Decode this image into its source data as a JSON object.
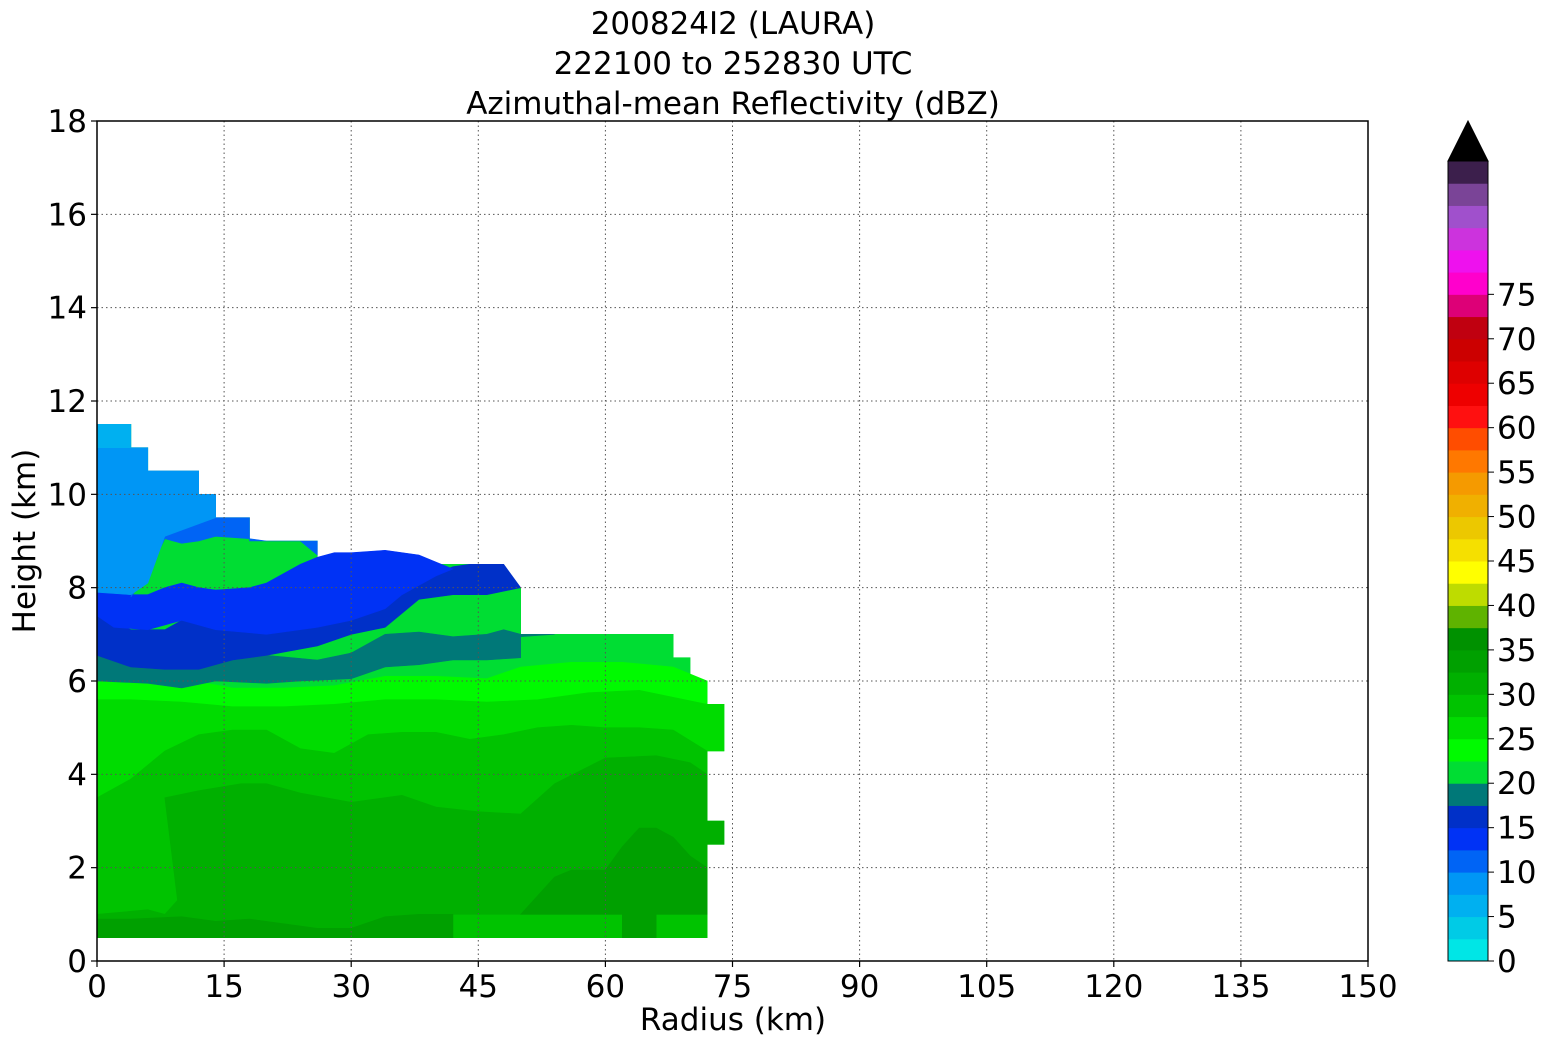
{
  "chart_data": {
    "type": "contour",
    "title": [
      "200824I2 (LAURA)",
      "222100 to 252830 UTC",
      "Azimuthal-mean Reflectivity (dBZ)"
    ],
    "xlabel": "Radius (km)",
    "ylabel": "Height (km)",
    "xlim": [
      0,
      150
    ],
    "ylim": [
      0,
      18
    ],
    "xticks": [
      0,
      15,
      30,
      45,
      60,
      75,
      90,
      105,
      120,
      135,
      150
    ],
    "yticks": [
      0,
      2,
      4,
      6,
      8,
      10,
      12,
      14,
      16,
      18
    ],
    "grid": true,
    "colorbar": {
      "ticks": [
        0,
        5,
        10,
        15,
        20,
        25,
        30,
        35,
        40,
        45,
        50,
        55,
        60,
        65,
        70,
        75
      ],
      "levels": [
        0,
        2.5,
        5,
        7.5,
        10,
        12.5,
        15,
        17.5,
        20,
        22.5,
        25,
        27.5,
        30,
        32.5,
        35,
        37.5,
        40,
        42.5,
        45,
        47.5,
        50,
        52.5,
        55,
        57.5,
        60,
        62.5,
        65,
        67.5,
        70,
        72.5,
        75,
        77.5,
        80
      ],
      "colors": [
        "#00e6e6",
        "#00cbe6",
        "#00b0f0",
        "#0096f5",
        "#0064f5",
        "#0032f5",
        "#0030c8",
        "#007878",
        "#00dd33",
        "#00fa00",
        "#00dc00",
        "#00c300",
        "#00b000",
        "#00a000",
        "#009100",
        "#5fb300",
        "#bedc00",
        "#ffff00",
        "#f5e000",
        "#ecc800",
        "#f0b000",
        "#f59a00",
        "#ff7800",
        "#ff4d00",
        "#ff1010",
        "#ee0000",
        "#de0000",
        "#cc0000",
        "#c00010",
        "#dd0077",
        "#ff00cc",
        "#ee11ee",
        "#cc33dd",
        "#a050cc",
        "#7a4497",
        "#3c1f4c"
      ],
      "extend_max_color": "#000000"
    },
    "regions": [
      {
        "dbz_range": "17.5-20",
        "color": "#00dd33",
        "x": [
          0,
          0,
          4,
          4,
          6,
          6,
          12,
          12,
          14,
          14,
          18,
          18,
          26,
          26,
          42,
          42,
          46,
          46,
          50,
          50,
          54,
          54,
          68,
          68,
          70,
          70,
          72,
          72,
          74,
          74,
          72,
          72,
          74,
          74,
          72,
          72,
          66,
          66,
          62,
          62,
          42,
          42,
          0
        ],
        "y": [
          0.5,
          11.5,
          11.5,
          11,
          11,
          10.5,
          10.5,
          10,
          10,
          9.5,
          9.5,
          9,
          9,
          8.5,
          8.5,
          8.5,
          8.5,
          8,
          8,
          7,
          7,
          7,
          7,
          6.5,
          6.5,
          6,
          6,
          5.5,
          5.5,
          4.5,
          4.5,
          3,
          3,
          2.5,
          2.5,
          1,
          1,
          0.5,
          0.5,
          1,
          1,
          0.5,
          0.5
        ]
      },
      {
        "dbz_range": "20-22.5",
        "color": "#00fa00",
        "x": [
          0,
          0,
          10,
          16,
          22,
          28,
          34,
          40,
          46,
          50,
          56,
          62,
          68,
          72,
          72,
          0
        ],
        "y": [
          0.5,
          6,
          6.05,
          5.85,
          5.85,
          5.9,
          6.1,
          6.1,
          6.05,
          6.3,
          6.4,
          6.4,
          6.3,
          6.0,
          0.5,
          0.5
        ]
      },
      {
        "dbz_range": "22.5-25",
        "color": "#00dc00",
        "x": [
          0,
          0,
          4,
          10,
          16,
          22,
          28,
          34,
          40,
          46,
          52,
          58,
          64,
          72,
          74,
          74,
          72,
          72,
          0
        ],
        "y": [
          0.5,
          5.6,
          5.6,
          5.55,
          5.45,
          5.45,
          5.5,
          5.6,
          5.6,
          5.55,
          5.6,
          5.75,
          5.8,
          5.5,
          5.5,
          4.5,
          4.5,
          0.5,
          0.5
        ]
      },
      {
        "dbz_range": "25-27.5",
        "color": "#00c300",
        "x": [
          0,
          0,
          4,
          8,
          12,
          16,
          20,
          24,
          28,
          32,
          36,
          40,
          44,
          48,
          52,
          56,
          60,
          64,
          68,
          72,
          72,
          0
        ],
        "y": [
          0.5,
          3.5,
          3.9,
          4.5,
          4.85,
          4.95,
          4.95,
          4.55,
          4.45,
          4.85,
          4.9,
          4.9,
          4.75,
          4.85,
          5.0,
          5.05,
          5.0,
          5.0,
          4.95,
          4.5,
          0.5,
          0.5
        ]
      },
      {
        "dbz_range": "27.5-30",
        "color": "#00b000",
        "x": [
          8,
          9.5,
          8,
          12,
          17,
          20,
          24,
          30,
          36,
          40,
          45,
          50,
          54,
          60,
          66,
          70,
          72,
          72,
          74,
          74,
          72,
          72,
          54,
          54,
          50,
          46,
          42,
          42,
          0,
          0,
          6,
          8
        ],
        "y": [
          1.0,
          1.3,
          3.5,
          3.65,
          3.8,
          3.8,
          3.6,
          3.4,
          3.55,
          3.3,
          3.2,
          3.15,
          3.8,
          4.35,
          4.4,
          4.25,
          4.0,
          3.0,
          3.0,
          2.5,
          2.5,
          1.0,
          1.0,
          1.0,
          1.0,
          1.0,
          1.0,
          0.5,
          0.5,
          1.0,
          1.1,
          1.0
        ]
      },
      {
        "dbz_range": "30-32.5",
        "color": "#00a000",
        "x": [
          0,
          0,
          4,
          10,
          14,
          18,
          22,
          26,
          30,
          34,
          38,
          42,
          42,
          0
        ],
        "y": [
          0.5,
          0.9,
          0.9,
          0.95,
          0.85,
          0.9,
          0.8,
          0.7,
          0.7,
          0.95,
          1.0,
          1.0,
          0.5,
          0.5
        ]
      },
      {
        "dbz_range": "30-32.5",
        "color": "#00a000",
        "x": [
          50,
          54,
          56,
          58,
          60,
          62,
          64,
          66,
          68,
          70,
          72,
          72,
          50
        ],
        "y": [
          1.0,
          1.8,
          1.95,
          1.95,
          1.95,
          2.45,
          2.85,
          2.85,
          2.65,
          2.25,
          2.0,
          1.0,
          1.0
        ]
      },
      {
        "dbz_range": "30-32.5",
        "color": "#00a000",
        "x": [
          62,
          62,
          66,
          66,
          62
        ],
        "y": [
          0.5,
          1.0,
          1.0,
          0.5,
          0.5
        ]
      },
      {
        "dbz_range": "15-17.5",
        "color": "#007878",
        "x": [
          0,
          0,
          4,
          8,
          12,
          16,
          20,
          26,
          30,
          34,
          38,
          42,
          46,
          48,
          50,
          50,
          54,
          54,
          50,
          50,
          46,
          42,
          38,
          34,
          30,
          24,
          20,
          14,
          10,
          6,
          0
        ],
        "y": [
          6.0,
          6.55,
          6.35,
          6.3,
          6.35,
          6.5,
          6.55,
          6.45,
          6.6,
          7.0,
          7.05,
          6.95,
          7.0,
          7.1,
          7.0,
          7.0,
          7.0,
          7.0,
          6.95,
          6.5,
          6.45,
          6.45,
          6.35,
          6.3,
          6.05,
          6.0,
          5.95,
          6.0,
          5.85,
          5.95,
          6.0
        ]
      },
      {
        "dbz_range": "12.5-15",
        "color": "#0030c8",
        "x": [
          0,
          0,
          4,
          8,
          10,
          14,
          20,
          26,
          30,
          34,
          36,
          38,
          40,
          42,
          44,
          46,
          48,
          50,
          50,
          46,
          42,
          38,
          34,
          30,
          26,
          20,
          16,
          12,
          8,
          4,
          0
        ],
        "y": [
          6.55,
          7.4,
          7.1,
          7.1,
          7.3,
          7.1,
          7.0,
          7.25,
          7.55,
          7.9,
          8.05,
          8.2,
          8.3,
          8.45,
          8.5,
          8.5,
          8.5,
          8.0,
          8.0,
          7.85,
          7.85,
          7.75,
          7.15,
          7.0,
          6.75,
          6.55,
          6.45,
          6.25,
          6.25,
          6.3,
          6.55
        ]
      },
      {
        "dbz_range": "10-12.5",
        "color": "#0032f5",
        "x": [
          0,
          0,
          4,
          6,
          8,
          10,
          12,
          14,
          18,
          20,
          24,
          26,
          28,
          30,
          34,
          38,
          40,
          42,
          40,
          38,
          36,
          34,
          30,
          26,
          20,
          14,
          10,
          6,
          2,
          0
        ],
        "y": [
          7.4,
          7.9,
          7.85,
          7.85,
          8.0,
          8.1,
          8.0,
          7.95,
          8.0,
          8.1,
          8.5,
          8.65,
          8.75,
          8.75,
          8.8,
          8.7,
          8.55,
          8.4,
          8.25,
          8.05,
          7.85,
          7.55,
          7.3,
          7.15,
          7.0,
          7.1,
          7.3,
          7.1,
          7.15,
          7.4
        ]
      },
      {
        "dbz_range": "7.5-10",
        "color": "#0064f5",
        "x": [
          4,
          6,
          8,
          8,
          10,
          12,
          12,
          14,
          18,
          20,
          22,
          24,
          26,
          26,
          18,
          18,
          14,
          14,
          12,
          12,
          6,
          6,
          4
        ],
        "y": [
          7.8,
          8.3,
          9.05,
          9.05,
          8.95,
          9.0,
          9.0,
          9.1,
          9.05,
          9.0,
          9.0,
          9.0,
          8.7,
          9.0,
          9.0,
          9.5,
          9.5,
          10,
          10,
          10.5,
          10.5,
          9.0,
          7.8
        ]
      },
      {
        "dbz_range": "5-7.5",
        "color": "#0096f5",
        "x": [
          0,
          0,
          4,
          4,
          6,
          6,
          12,
          12,
          14,
          14,
          8,
          6,
          4,
          0
        ],
        "y": [
          7.9,
          11,
          11,
          11,
          11,
          10.5,
          10.5,
          10,
          10,
          9.5,
          9.1,
          8.1,
          7.85,
          7.9
        ]
      },
      {
        "dbz_range": "2.5-5",
        "color": "#00b0f0",
        "x": [
          0,
          0,
          4,
          4,
          0
        ],
        "y": [
          11,
          11.5,
          11.5,
          11,
          11
        ]
      }
    ]
  }
}
